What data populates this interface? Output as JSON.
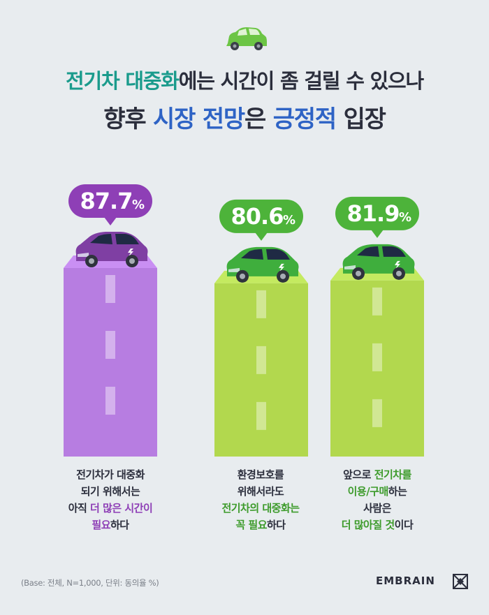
{
  "title": {
    "line1": [
      {
        "text": "전기차 대중화",
        "color": "teal"
      },
      {
        "text": "에는 시간이 좀 걸릴 수 있으나",
        "color": "dark"
      }
    ],
    "line2": [
      {
        "text": "향후 ",
        "color": "dark"
      },
      {
        "text": "시장 전망",
        "color": "blue"
      },
      {
        "text": "은 ",
        "color": "dark"
      },
      {
        "text": "긍정적",
        "color": "blue"
      },
      {
        "text": " 입장",
        "color": "dark"
      }
    ]
  },
  "chart_data": {
    "type": "bar",
    "categories": [
      "전기차가 대중화 되기 위해서는 아직 더 많은 시간이 필요하다",
      "환경보호를 위해서라도 전기차의 대중화는 꼭 필요하다",
      "앞으로 전기차를 이용/구매하는 사람은 더 많아질 것이다"
    ],
    "values": [
      87.7,
      80.6,
      81.9
    ],
    "unit": "%",
    "value_labels": [
      "87.7",
      "80.6",
      "81.9"
    ],
    "colors": [
      "#b77de1",
      "#b2d84e",
      "#b2d84e"
    ],
    "bubble_colors": [
      "#8e3fb6",
      "#4db33a",
      "#4db33a"
    ],
    "car_colors": [
      "#7f3fa3",
      "#3fae3d",
      "#3fae3d"
    ]
  },
  "descriptions": [
    {
      "lines": [
        [
          {
            "text": "전기차가 대중화",
            "hl": false
          }
        ],
        [
          {
            "text": "되기 위해서는",
            "hl": false
          }
        ],
        [
          {
            "text": "아직 ",
            "hl": false
          },
          {
            "text": "더 많은 시간이",
            "hl": true
          }
        ],
        [
          {
            "text": "필요",
            "hl": true
          },
          {
            "text": "하다",
            "hl": false
          }
        ]
      ],
      "highlight": "#8e3fb6"
    },
    {
      "lines": [
        [
          {
            "text": "환경보호를",
            "hl": false
          }
        ],
        [
          {
            "text": "위해서라도",
            "hl": false
          }
        ],
        [
          {
            "text": "전기차의 대중화는",
            "hl": true
          }
        ],
        [
          {
            "text": "꼭 필요",
            "hl": true
          },
          {
            "text": "하다",
            "hl": false
          }
        ]
      ],
      "highlight": "#3d9b2b"
    },
    {
      "lines": [
        [
          {
            "text": "앞으로 ",
            "hl": false
          },
          {
            "text": "전기차를",
            "hl": true
          }
        ],
        [
          {
            "text": "이용/구매",
            "hl": true
          },
          {
            "text": "하는",
            "hl": false
          }
        ],
        [
          {
            "text": "사람은",
            "hl": false
          }
        ],
        [
          {
            "text": "더 많아질 것",
            "hl": true
          },
          {
            "text": "이다",
            "hl": false
          }
        ]
      ],
      "highlight": "#3d9b2b"
    }
  ],
  "footnote": "(Base: 전체, N=1,000, 단위: 동의율 %)",
  "brand": "EMBRAIN"
}
